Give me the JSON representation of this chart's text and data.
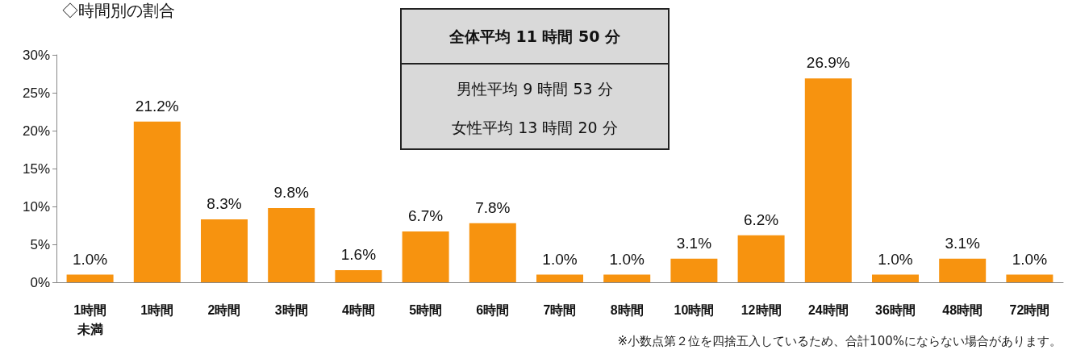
{
  "chart_data": {
    "type": "bar",
    "title": "◇時間別の割合",
    "categories": [
      "1時間未満",
      "1時間",
      "2時間",
      "3時間",
      "4時間",
      "5時間",
      "6時間",
      "7時間",
      "8時間",
      "10時間",
      "12時間",
      "24時間",
      "36時間",
      "48時間",
      "72時間"
    ],
    "values": [
      1.0,
      21.2,
      8.3,
      9.8,
      1.6,
      6.7,
      7.8,
      1.0,
      1.0,
      3.1,
      6.2,
      26.9,
      1.0,
      3.1,
      1.0
    ],
    "value_labels": [
      "1.0%",
      "21.2%",
      "8.3%",
      "9.8%",
      "1.6%",
      "6.7%",
      "7.8%",
      "1.0%",
      "1.0%",
      "3.1%",
      "6.2%",
      "26.9%",
      "1.0%",
      "3.1%",
      "1.0%"
    ],
    "color": "#f7930f",
    "ylim": [
      0,
      30
    ],
    "yticks": [
      {
        "value": 0,
        "label": "0%"
      },
      {
        "value": 5,
        "label": "5%"
      },
      {
        "value": 10,
        "label": "10%"
      },
      {
        "value": 15,
        "label": "15%"
      },
      {
        "value": 20,
        "label": "20%"
      },
      {
        "value": 25,
        "label": "25%"
      },
      {
        "value": 30,
        "label": "30%"
      }
    ],
    "grid": false,
    "annotations": [
      "全体平均  11 時間 50 分",
      "男性平均  9 時間 53 分",
      "女性平均 13 時間 20 分",
      "※小数点第２位を四捨五入しているため、合計100%にならない場合があります。"
    ]
  }
}
